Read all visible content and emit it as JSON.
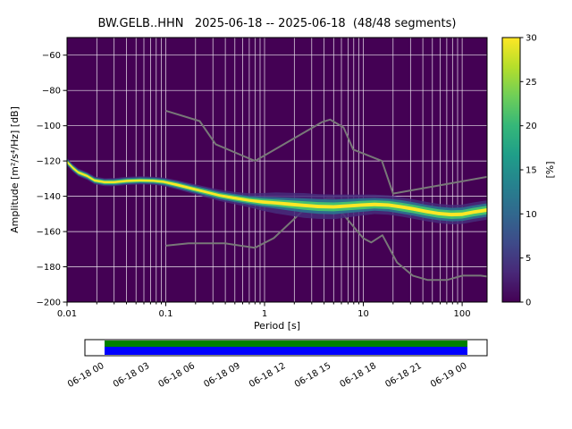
{
  "chart_data": {
    "type": "heatmap",
    "title": "BW.GELB..HHN   2025-06-18 -- 2025-06-18  (48/48 segments)",
    "station": "BW.GELB..HHN",
    "date_range": "2025-06-18 -- 2025-06-18",
    "segments": "48/48",
    "xlabel": "Period [s]",
    "ylabel": "Amplitude [m²/s⁴/Hz] [dB]",
    "x_scale": "log",
    "xlim": [
      0.01,
      179
    ],
    "ylim": [
      -200,
      -50
    ],
    "x_tick_values": [
      0.01,
      0.1,
      1,
      10,
      100
    ],
    "x_tick_labels": [
      "0.01",
      "0.1",
      "1",
      "10",
      "100"
    ],
    "y_tick_values": [
      -60,
      -80,
      -100,
      -120,
      -140,
      -160,
      -180,
      -200
    ],
    "y_tick_labels": [
      "−60",
      "−80",
      "−100",
      "−120",
      "−140",
      "−160",
      "−180",
      "−200"
    ],
    "grid": true,
    "grid_color": "#ffffff",
    "background_color": "#440154",
    "colorbar": {
      "label": "[%]",
      "min": 0,
      "max": 30,
      "tick_values": [
        0,
        5,
        10,
        15,
        20,
        25,
        30
      ],
      "tick_labels": [
        "0",
        "5",
        "10",
        "15",
        "20",
        "25",
        "30"
      ],
      "colormap": "viridis",
      "gradient": [
        "#440154",
        "#482878",
        "#3e4a89",
        "#31688e",
        "#26828e",
        "#1f9e89",
        "#35b779",
        "#6ece58",
        "#b5de2b",
        "#fde725"
      ]
    },
    "psd_distribution": {
      "description": "mode of PSD probability density (dB) vs period (s), half-widths in dB for core/mid/outer/halo bands",
      "layers": [
        {
          "name": "halo",
          "width_index": 3,
          "color": "#472d7b",
          "opacity": 0.85
        },
        {
          "name": "outer",
          "width_index": 2,
          "color": "#2d708e",
          "opacity": 0.95
        },
        {
          "name": "mid",
          "width_index": 1,
          "color": "#44bf70",
          "opacity": 1
        },
        {
          "name": "core",
          "width_index": 0,
          "color": "#fde725",
          "opacity": 1
        }
      ],
      "points": [
        [
          0.01,
          -120.5,
          [
            0.6,
            1.1,
            1.6,
            2.2
          ]
        ],
        [
          0.0115,
          -124.0,
          [
            0.6,
            1.1,
            1.6,
            2.2
          ]
        ],
        [
          0.013,
          -126.5,
          [
            0.6,
            1.1,
            1.6,
            2.2
          ]
        ],
        [
          0.016,
          -128.5,
          [
            0.6,
            1.1,
            1.6,
            2.2
          ]
        ],
        [
          0.019,
          -131.0,
          [
            0.6,
            1.1,
            1.6,
            2.2
          ]
        ],
        [
          0.024,
          -132.0,
          [
            0.6,
            1.1,
            1.6,
            2.2
          ]
        ],
        [
          0.03,
          -132.0,
          [
            0.6,
            1.1,
            1.7,
            2.3
          ]
        ],
        [
          0.04,
          -131.3,
          [
            0.6,
            1.1,
            1.7,
            2.3
          ]
        ],
        [
          0.055,
          -131.0,
          [
            0.6,
            1.1,
            1.7,
            2.3
          ]
        ],
        [
          0.075,
          -131.2,
          [
            0.6,
            1.1,
            1.7,
            2.3
          ]
        ],
        [
          0.095,
          -131.8,
          [
            0.6,
            1.2,
            1.8,
            2.4
          ]
        ],
        [
          0.13,
          -133.5,
          [
            0.7,
            1.3,
            2.0,
            2.6
          ]
        ],
        [
          0.18,
          -135.5,
          [
            0.7,
            1.3,
            2.0,
            2.8
          ]
        ],
        [
          0.25,
          -137.5,
          [
            0.7,
            1.4,
            2.1,
            3.0
          ]
        ],
        [
          0.35,
          -139.5,
          [
            0.7,
            1.4,
            2.2,
            3.2
          ]
        ],
        [
          0.5,
          -141.0,
          [
            0.8,
            1.5,
            2.3,
            3.5
          ]
        ],
        [
          0.7,
          -142.3,
          [
            0.8,
            1.6,
            2.5,
            4.0
          ]
        ],
        [
          0.95,
          -143.2,
          [
            0.9,
            1.8,
            2.8,
            5.0
          ]
        ],
        [
          1.3,
          -143.8,
          [
            0.9,
            2.0,
            3.2,
            6.0
          ]
        ],
        [
          1.8,
          -144.5,
          [
            1.0,
            2.2,
            3.6,
            6.5
          ]
        ],
        [
          2.5,
          -145.2,
          [
            1.0,
            2.4,
            4.0,
            7.0
          ]
        ],
        [
          3.5,
          -145.8,
          [
            1.0,
            2.5,
            4.2,
            7.0
          ]
        ],
        [
          5.0,
          -146.0,
          [
            1.0,
            2.5,
            4.2,
            7.0
          ]
        ],
        [
          7.0,
          -145.5,
          [
            1.0,
            2.4,
            4.0,
            6.5
          ]
        ],
        [
          9.5,
          -145.0,
          [
            1.0,
            2.4,
            3.8,
            6.0
          ]
        ],
        [
          13,
          -144.6,
          [
            1.0,
            2.3,
            3.6,
            5.5
          ]
        ],
        [
          18,
          -145.0,
          [
            1.0,
            2.3,
            3.6,
            5.5
          ]
        ],
        [
          24,
          -146.0,
          [
            1.0,
            2.4,
            3.8,
            5.5
          ]
        ],
        [
          32,
          -147.2,
          [
            1.0,
            2.4,
            3.8,
            5.5
          ]
        ],
        [
          43,
          -148.6,
          [
            1.0,
            2.4,
            3.8,
            5.5
          ]
        ],
        [
          58,
          -149.8,
          [
            1.0,
            2.4,
            3.8,
            5.5
          ]
        ],
        [
          78,
          -150.4,
          [
            1.0,
            2.4,
            3.8,
            5.5
          ]
        ],
        [
          100,
          -150.2,
          [
            1.0,
            2.4,
            3.8,
            5.5
          ]
        ],
        [
          130,
          -149.0,
          [
            1.0,
            2.4,
            3.8,
            5.5
          ]
        ],
        [
          179,
          -147.8,
          [
            1.0,
            2.4,
            3.8,
            5.5
          ]
        ]
      ]
    },
    "noise_models": {
      "color": "#787878",
      "high_noise_model": [
        [
          0.1,
          -91.5
        ],
        [
          0.22,
          -97.4
        ],
        [
          0.32,
          -110.5
        ],
        [
          0.8,
          -120.0
        ],
        [
          3.8,
          -98.0
        ],
        [
          4.6,
          -96.5
        ],
        [
          6.3,
          -101.0
        ],
        [
          7.9,
          -113.5
        ],
        [
          15.4,
          -120.0
        ],
        [
          20.0,
          -138.5
        ],
        [
          179.0,
          -129.0
        ]
      ],
      "low_noise_model": [
        [
          0.1,
          -168.0
        ],
        [
          0.17,
          -166.7
        ],
        [
          0.4,
          -166.7
        ],
        [
          0.8,
          -169.2
        ],
        [
          1.24,
          -163.7
        ],
        [
          2.4,
          -148.6
        ],
        [
          4.3,
          -141.1
        ],
        [
          5.0,
          -141.1
        ],
        [
          6.0,
          -149.0
        ],
        [
          10.0,
          -163.8
        ],
        [
          12.0,
          -166.2
        ],
        [
          15.6,
          -162.1
        ],
        [
          21.9,
          -177.5
        ],
        [
          31.6,
          -185.0
        ],
        [
          45.0,
          -187.5
        ],
        [
          70.0,
          -187.5
        ],
        [
          101.0,
          -185.0
        ],
        [
          154.0,
          -185.0
        ],
        [
          179.0,
          -185.5
        ]
      ]
    },
    "timeline": {
      "tick_labels": [
        "06-18 00",
        "06-18 03",
        "06-18 06",
        "06-18 09",
        "06-18 12",
        "06-18 15",
        "06-18 18",
        "06-18 21",
        "06-19 00"
      ],
      "coverage_color_top": "#008000",
      "coverage_color_bottom": "#0000ff",
      "box_color": "#ffffff"
    }
  }
}
